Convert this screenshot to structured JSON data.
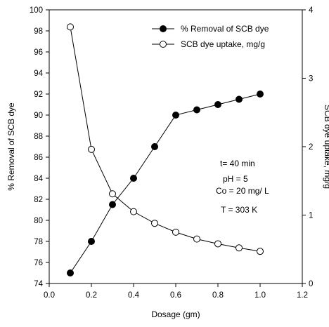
{
  "chart_data": {
    "type": "line",
    "xlabel": "Dosage (gm)",
    "ylabel": "% Removal of SCB dye",
    "y2label": "SCB dye uptake, mg/g",
    "xlim": [
      0.0,
      1.2
    ],
    "ylim": [
      74,
      100
    ],
    "y2lim": [
      0,
      4
    ],
    "xticks": [
      "0.0",
      "0.2",
      "0.4",
      "0.6",
      "0.8",
      "1.0",
      "1.2"
    ],
    "yticks": [
      "74",
      "76",
      "78",
      "80",
      "82",
      "84",
      "86",
      "88",
      "90",
      "92",
      "94",
      "96",
      "98",
      "100"
    ],
    "y2ticks": [
      "0",
      "1",
      "2",
      "3",
      "4"
    ],
    "grid": false,
    "legend_position": "top-right",
    "series": [
      {
        "name": "% Removal of SCB dye",
        "axis": "left",
        "marker": "filled-circle",
        "color": "#000000",
        "x": [
          0.1,
          0.2,
          0.3,
          0.4,
          0.5,
          0.6,
          0.7,
          0.8,
          0.9,
          1.0
        ],
        "values": [
          75.0,
          78.0,
          81.5,
          84.0,
          87.0,
          90.0,
          90.5,
          91.0,
          91.5,
          92.0
        ]
      },
      {
        "name": "SCB dye uptake, mg/g",
        "axis": "right",
        "marker": "open-circle",
        "color": "#000000",
        "x": [
          0.1,
          0.2,
          0.3,
          0.4,
          0.5,
          0.6,
          0.7,
          0.8,
          0.9,
          1.0
        ],
        "values": [
          3.75,
          1.96,
          1.31,
          1.05,
          0.88,
          0.75,
          0.65,
          0.58,
          0.52,
          0.47
        ]
      }
    ],
    "annotations": [
      "t= 40 min",
      "pH = 5",
      "Co = 20 mg/ L",
      "T = 303 K"
    ]
  }
}
